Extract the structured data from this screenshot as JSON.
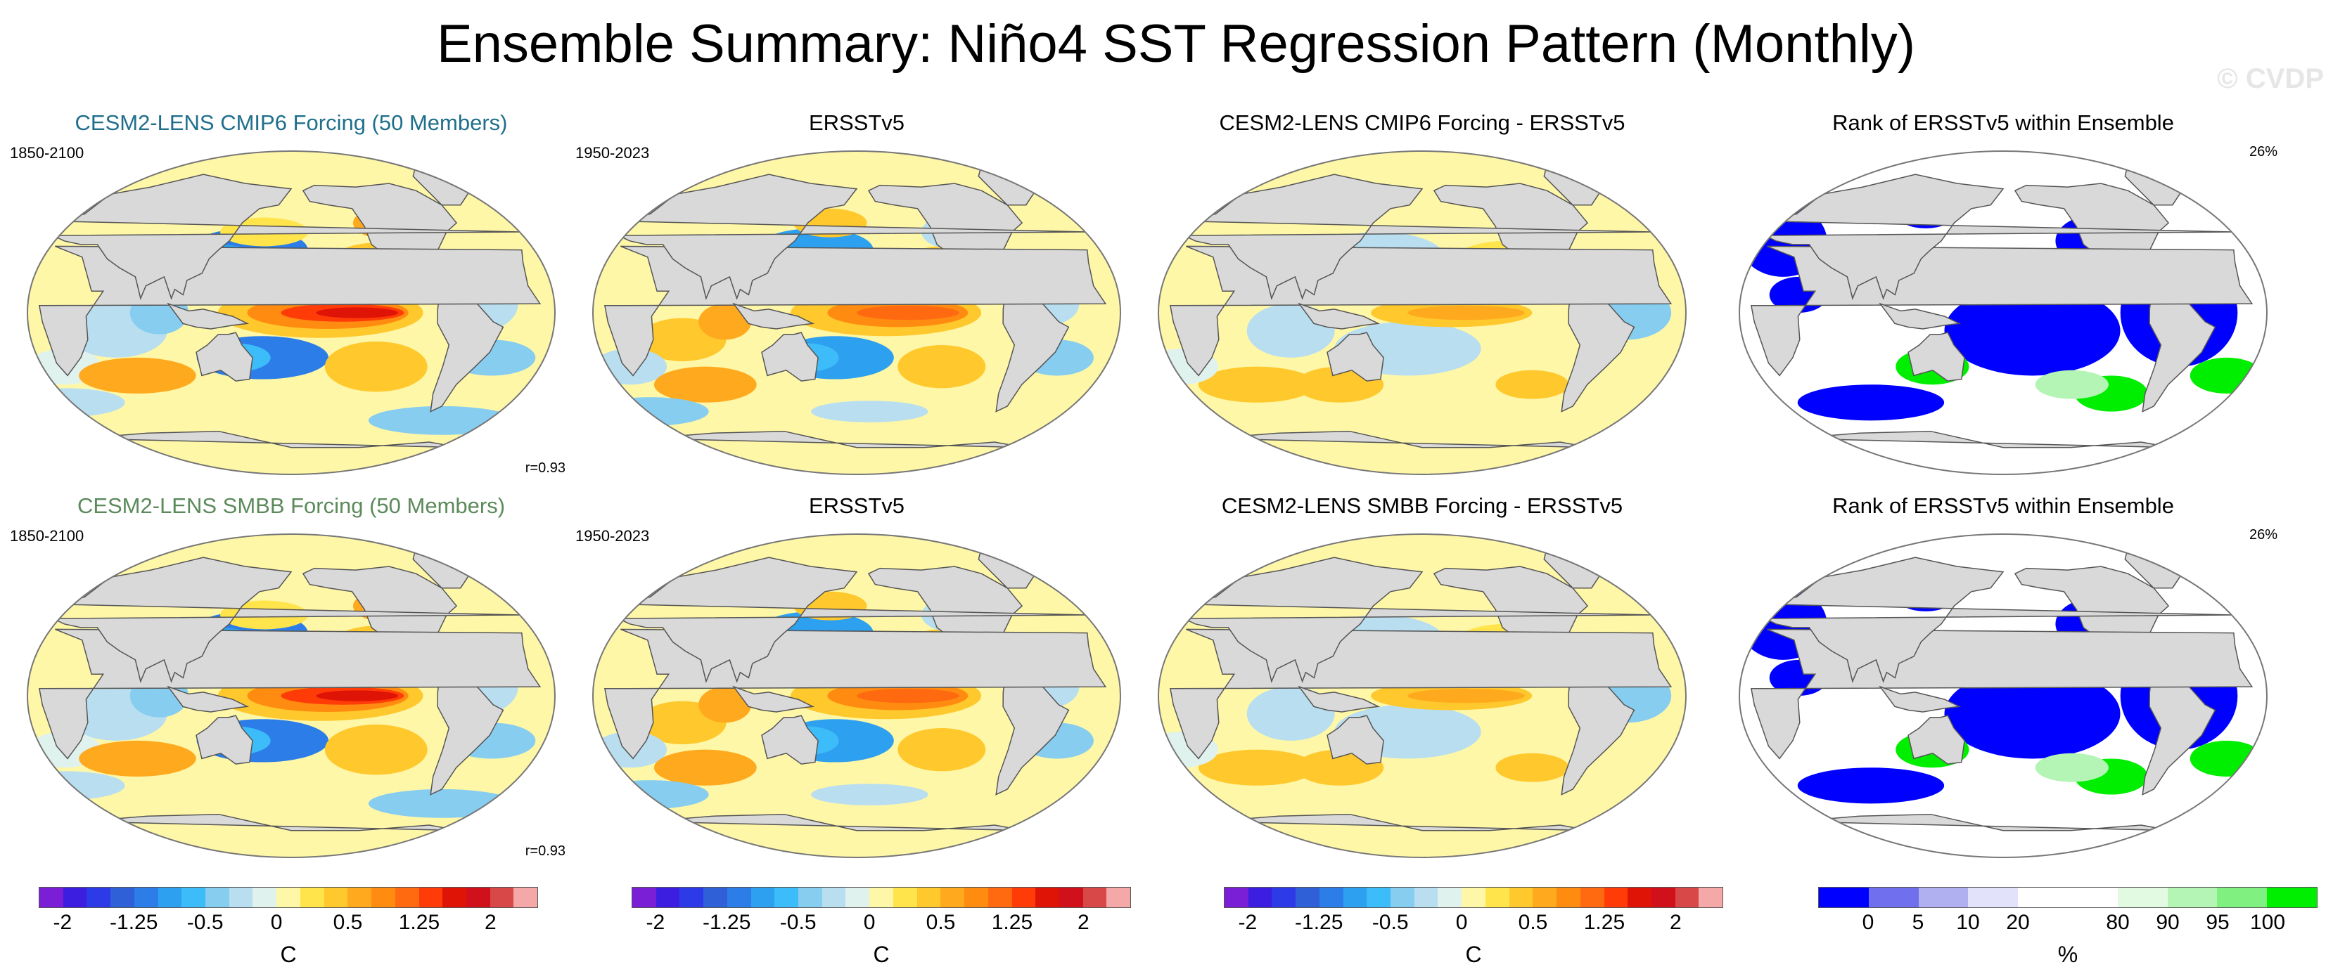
{
  "title": "Ensemble Summary: Niño4 SST Regression Pattern (Monthly)",
  "watermark": "© CVDP",
  "colors": {
    "ocean_base": "#fff7a8",
    "land": "#d9d9d9",
    "blue_title_1": "#1f6f8b",
    "green_title_2": "#5b8a5b"
  },
  "panels": [
    {
      "id": "p11",
      "title": "CESM2-LENS CMIP6 Forcing (50 Members)",
      "title_color": "#1f6f8b",
      "period": "1850-2100",
      "corr": "r=0.93",
      "pct": "",
      "kind": "model"
    },
    {
      "id": "p12",
      "title": "ERSSTv5",
      "title_color": "#000000",
      "period": "1950-2023",
      "corr": "",
      "pct": "",
      "kind": "obs"
    },
    {
      "id": "p13",
      "title": "CESM2-LENS CMIP6 Forcing - ERSSTv5",
      "title_color": "#000000",
      "period": "",
      "corr": "",
      "pct": "",
      "kind": "diff"
    },
    {
      "id": "p14",
      "title": "Rank of ERSSTv5 within Ensemble",
      "title_color": "#000000",
      "period": "",
      "corr": "",
      "pct": "26%",
      "kind": "rank"
    },
    {
      "id": "p21",
      "title": "CESM2-LENS SMBB Forcing (50 Members)",
      "title_color": "#5b8a5b",
      "period": "1850-2100",
      "corr": "r=0.93",
      "pct": "",
      "kind": "model"
    },
    {
      "id": "p22",
      "title": "ERSSTv5",
      "title_color": "#000000",
      "period": "1950-2023",
      "corr": "",
      "pct": "",
      "kind": "obs"
    },
    {
      "id": "p23",
      "title": "CESM2-LENS SMBB Forcing - ERSSTv5",
      "title_color": "#000000",
      "period": "",
      "corr": "",
      "pct": "",
      "kind": "diff"
    },
    {
      "id": "p24",
      "title": "Rank of ERSSTv5 within Ensemble",
      "title_color": "#000000",
      "period": "",
      "corr": "",
      "pct": "26%",
      "kind": "rank"
    }
  ],
  "colorbars": {
    "sst": {
      "colors": [
        "#7a1fd6",
        "#3c1ee0",
        "#2c3ae8",
        "#3060d8",
        "#2c7de8",
        "#2ea0f0",
        "#3cbcf8",
        "#86cdf0",
        "#b8def0",
        "#e0f2ee",
        "#fff7a8",
        "#ffe44c",
        "#ffc82c",
        "#ffaa1e",
        "#ff8c10",
        "#ff6a10",
        "#ff3c08",
        "#e01406",
        "#d0101a",
        "#d84848",
        "#f4a8a8"
      ],
      "labels": [
        "-2",
        "-1.25",
        "-0.5",
        "0",
        "0.5",
        "1.25",
        "2"
      ],
      "unit": "C"
    },
    "rank": {
      "colors": [
        "#0000ff",
        "#7070ee",
        "#b0b0f0",
        "#e2e2fa",
        "#ffffff",
        "#ffffff",
        "#e2fae2",
        "#b4f4b4",
        "#80f080",
        "#00ee00"
      ],
      "labels": [
        "0",
        "5",
        "10",
        "20",
        "80",
        "90",
        "95",
        "100"
      ],
      "unit": "%"
    }
  },
  "chart_data": {
    "type": "heatmap",
    "title": "Ensemble Summary: Niño4 SST Regression Pattern (Monthly)",
    "colorbar_sst": {
      "min": -2,
      "max": 2,
      "labels": [
        -2,
        -1.25,
        -0.5,
        0,
        0.5,
        1.25,
        2
      ],
      "unit": "C"
    },
    "colorbar_rank": {
      "labels": [
        0,
        5,
        10,
        20,
        80,
        90,
        95,
        100
      ],
      "unit": "%"
    },
    "pattern_correlation": {
      "CESM2-LENS CMIP6 Forcing": 0.93,
      "CESM2-LENS SMBB Forcing": 0.93
    },
    "rank_percentile": {
      "CESM2-LENS CMIP6 Forcing": 26,
      "CESM2-LENS SMBB Forcing": 26
    }
  }
}
